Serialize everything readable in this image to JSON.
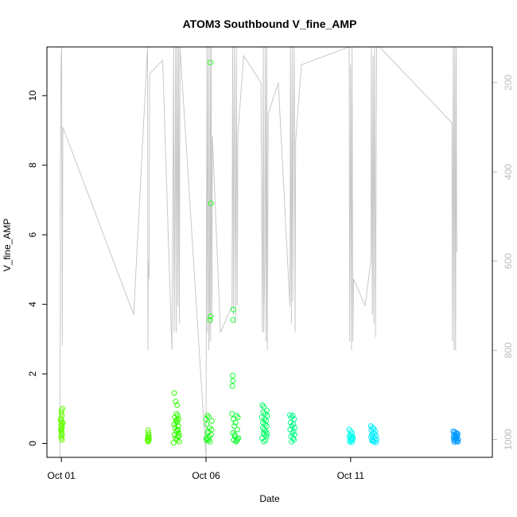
{
  "chart_data": {
    "type": "scatter",
    "title": "ATOM3 Southbound V_fine_AMP",
    "xlabel": "Date",
    "ylabel": "V_fine_AMP",
    "x_ticks": [
      {
        "label": "Oct 01",
        "day": 1
      },
      {
        "label": "Oct 06",
        "day": 6
      },
      {
        "label": "Oct 11",
        "day": 11
      }
    ],
    "xlim_days": [
      0.5,
      15.9
    ],
    "ylim": [
      -0.4,
      11.4
    ],
    "y_ticks": [
      0,
      2,
      4,
      6,
      8,
      10
    ],
    "secondary_axis": {
      "reversed": true,
      "lim": [
        1040,
        120
      ],
      "ticks": [
        200,
        400,
        600,
        800,
        1000
      ],
      "color": "#bbbbbb"
    },
    "grid": false,
    "legend": "none",
    "series": [
      {
        "color": "#66ff00",
        "points": [
          [
            1.0,
            0.95
          ],
          [
            1.0,
            0.88
          ],
          [
            1.02,
            0.8
          ],
          [
            0.98,
            0.72
          ],
          [
            1.01,
            0.65
          ],
          [
            1.03,
            0.6
          ],
          [
            0.99,
            0.55
          ],
          [
            1.0,
            0.5
          ],
          [
            1.02,
            0.45
          ],
          [
            0.98,
            0.4
          ],
          [
            1.01,
            0.35
          ],
          [
            1.0,
            0.3
          ],
          [
            1.03,
            0.25
          ],
          [
            0.99,
            0.2
          ],
          [
            1.0,
            0.15
          ],
          [
            1.02,
            0.1
          ],
          [
            1.04,
            1.0
          ],
          [
            0.97,
            0.68
          ],
          [
            1.05,
            0.58
          ],
          [
            1.0,
            0.42
          ]
        ]
      },
      {
        "color": "#55ff00",
        "points": [
          [
            4.0,
            0.38
          ],
          [
            4.01,
            0.3
          ],
          [
            4.02,
            0.25
          ],
          [
            3.99,
            0.2
          ],
          [
            4.0,
            0.15
          ],
          [
            4.03,
            0.12
          ],
          [
            4.01,
            0.08
          ],
          [
            3.98,
            0.1
          ],
          [
            4.02,
            0.18
          ],
          [
            4.0,
            0.05
          ]
        ]
      },
      {
        "color": "#33ff00",
        "points": [
          [
            4.9,
            1.45
          ],
          [
            4.95,
            1.2
          ],
          [
            5.0,
            1.1
          ],
          [
            4.98,
            0.85
          ],
          [
            5.02,
            0.8
          ],
          [
            4.92,
            0.75
          ],
          [
            5.05,
            0.7
          ],
          [
            4.96,
            0.65
          ],
          [
            5.0,
            0.6
          ],
          [
            4.9,
            0.55
          ],
          [
            5.04,
            0.5
          ],
          [
            4.93,
            0.45
          ],
          [
            5.01,
            0.4
          ],
          [
            4.97,
            0.35
          ],
          [
            5.06,
            0.3
          ],
          [
            4.91,
            0.25
          ],
          [
            5.02,
            0.2
          ],
          [
            4.95,
            0.15
          ],
          [
            5.0,
            0.1
          ],
          [
            5.08,
            0.05
          ],
          [
            4.88,
            0.02
          ],
          [
            5.03,
            0.38
          ],
          [
            4.99,
            0.68
          ],
          [
            5.07,
            0.22
          ]
        ]
      },
      {
        "color": "#22ff22",
        "points": [
          [
            6.15,
            10.95
          ],
          [
            6.17,
            6.9
          ],
          [
            6.16,
            3.65
          ],
          [
            6.14,
            3.55
          ],
          [
            6.05,
            0.8
          ],
          [
            6.1,
            0.75
          ],
          [
            6.0,
            0.7
          ],
          [
            6.2,
            0.65
          ],
          [
            6.03,
            0.55
          ],
          [
            6.12,
            0.45
          ],
          [
            6.07,
            0.35
          ],
          [
            6.18,
            0.25
          ],
          [
            6.01,
            0.15
          ],
          [
            6.09,
            0.1
          ],
          [
            6.14,
            0.05
          ],
          [
            6.04,
            0.08
          ],
          [
            6.11,
            0.2
          ],
          [
            6.06,
            0.3
          ],
          [
            6.19,
            0.4
          ],
          [
            6.02,
            0.12
          ]
        ]
      },
      {
        "color": "#11ff33",
        "points": [
          [
            6.95,
            3.85
          ],
          [
            6.93,
            3.55
          ],
          [
            6.92,
            1.95
          ],
          [
            6.93,
            1.8
          ],
          [
            6.91,
            1.65
          ],
          [
            6.9,
            0.85
          ],
          [
            7.05,
            0.8
          ],
          [
            7.1,
            0.75
          ],
          [
            6.95,
            0.7
          ],
          [
            7.02,
            0.6
          ],
          [
            6.98,
            0.5
          ],
          [
            7.08,
            0.4
          ],
          [
            6.93,
            0.3
          ],
          [
            7.0,
            0.2
          ],
          [
            7.12,
            0.15
          ],
          [
            6.96,
            0.1
          ],
          [
            7.04,
            0.05
          ],
          [
            7.09,
            0.12
          ],
          [
            6.99,
            0.25
          ],
          [
            7.06,
            0.08
          ]
        ]
      },
      {
        "color": "#00ff66",
        "points": [
          [
            7.95,
            1.1
          ],
          [
            8.0,
            1.05
          ],
          [
            8.1,
            0.95
          ],
          [
            7.98,
            0.9
          ],
          [
            8.05,
            0.85
          ],
          [
            8.12,
            0.8
          ],
          [
            7.93,
            0.75
          ],
          [
            8.02,
            0.7
          ],
          [
            8.08,
            0.65
          ],
          [
            7.97,
            0.6
          ],
          [
            8.04,
            0.55
          ],
          [
            8.1,
            0.5
          ],
          [
            7.96,
            0.45
          ],
          [
            8.01,
            0.4
          ],
          [
            8.07,
            0.35
          ],
          [
            7.99,
            0.3
          ],
          [
            8.03,
            0.25
          ],
          [
            8.09,
            0.2
          ],
          [
            7.94,
            0.15
          ],
          [
            8.06,
            0.1
          ],
          [
            8.0,
            0.05
          ],
          [
            8.11,
            0.28
          ]
        ]
      },
      {
        "color": "#00ff88",
        "points": [
          [
            8.9,
            0.82
          ],
          [
            9.0,
            0.8
          ],
          [
            8.95,
            0.75
          ],
          [
            9.05,
            0.7
          ],
          [
            8.92,
            0.6
          ],
          [
            9.02,
            0.55
          ],
          [
            8.97,
            0.5
          ],
          [
            9.07,
            0.45
          ],
          [
            8.91,
            0.4
          ],
          [
            9.03,
            0.35
          ],
          [
            8.99,
            0.3
          ],
          [
            9.06,
            0.25
          ],
          [
            8.94,
            0.2
          ],
          [
            9.01,
            0.15
          ],
          [
            9.04,
            0.1
          ],
          [
            8.96,
            0.05
          ]
        ]
      },
      {
        "color": "#00ffee",
        "points": [
          [
            10.95,
            0.4
          ],
          [
            11.0,
            0.35
          ],
          [
            11.05,
            0.3
          ],
          [
            10.98,
            0.25
          ],
          [
            11.02,
            0.22
          ],
          [
            11.07,
            0.2
          ],
          [
            10.96,
            0.18
          ],
          [
            11.03,
            0.15
          ],
          [
            10.99,
            0.12
          ],
          [
            11.06,
            0.1
          ],
          [
            11.01,
            0.08
          ],
          [
            10.97,
            0.05
          ],
          [
            11.04,
            0.03
          ],
          [
            11.08,
            0.14
          ]
        ]
      },
      {
        "color": "#00eeff",
        "points": [
          [
            11.7,
            0.5
          ],
          [
            11.75,
            0.45
          ],
          [
            11.8,
            0.42
          ],
          [
            11.72,
            0.38
          ],
          [
            11.85,
            0.35
          ],
          [
            11.77,
            0.3
          ],
          [
            11.82,
            0.28
          ],
          [
            11.73,
            0.25
          ],
          [
            11.88,
            0.22
          ],
          [
            11.79,
            0.2
          ],
          [
            11.71,
            0.18
          ],
          [
            11.84,
            0.15
          ],
          [
            11.76,
            0.12
          ],
          [
            11.9,
            0.1
          ],
          [
            11.74,
            0.08
          ],
          [
            11.81,
            0.05
          ],
          [
            11.87,
            0.03
          ],
          [
            11.78,
            0.06
          ]
        ]
      },
      {
        "color": "#0099ff",
        "points": [
          [
            14.55,
            0.35
          ],
          [
            14.6,
            0.33
          ],
          [
            14.65,
            0.3
          ],
          [
            14.7,
            0.28
          ],
          [
            14.58,
            0.25
          ],
          [
            14.63,
            0.22
          ],
          [
            14.68,
            0.2
          ],
          [
            14.56,
            0.18
          ],
          [
            14.61,
            0.15
          ],
          [
            14.66,
            0.13
          ],
          [
            14.72,
            0.12
          ],
          [
            14.57,
            0.1
          ],
          [
            14.62,
            0.08
          ],
          [
            14.67,
            0.06
          ],
          [
            14.71,
            0.05
          ],
          [
            14.59,
            0.04
          ],
          [
            14.64,
            0.16
          ],
          [
            14.69,
            0.24
          ]
        ]
      }
    ],
    "secondary_line": {
      "color": "#c8c8c8",
      "points": [
        [
          0.95,
          1040
        ],
        [
          0.97,
          350
        ],
        [
          0.99,
          150
        ],
        [
          1.01,
          120
        ],
        [
          1.03,
          790
        ],
        [
          1.05,
          300
        ],
        [
          3.5,
          720
        ],
        [
          3.98,
          120
        ],
        [
          3.99,
          800
        ],
        [
          4.0,
          630
        ],
        [
          4.02,
          600
        ],
        [
          4.03,
          640
        ],
        [
          4.05,
          180
        ],
        [
          4.5,
          150
        ],
        [
          4.8,
          760
        ],
        [
          4.82,
          800
        ],
        [
          4.85,
          500
        ],
        [
          4.88,
          120
        ],
        [
          4.9,
          760
        ],
        [
          4.93,
          410
        ],
        [
          4.95,
          120
        ],
        [
          4.97,
          760
        ],
        [
          5.0,
          120
        ],
        [
          5.03,
          700
        ],
        [
          5.05,
          120
        ],
        [
          5.08,
          740
        ],
        [
          5.1,
          120
        ],
        [
          6.0,
          1040
        ],
        [
          6.03,
          120
        ],
        [
          6.05,
          760
        ],
        [
          6.08,
          120
        ],
        [
          6.1,
          800
        ],
        [
          6.12,
          700
        ],
        [
          6.14,
          120
        ],
        [
          6.16,
          780
        ],
        [
          6.18,
          120
        ],
        [
          6.2,
          740
        ],
        [
          6.22,
          320
        ],
        [
          6.5,
          760
        ],
        [
          6.9,
          700
        ],
        [
          6.92,
          120
        ],
        [
          6.95,
          720
        ],
        [
          6.98,
          120
        ],
        [
          7.02,
          740
        ],
        [
          7.05,
          120
        ],
        [
          7.08,
          700
        ],
        [
          7.1,
          320
        ],
        [
          7.3,
          140
        ],
        [
          7.9,
          200
        ],
        [
          7.95,
          760
        ],
        [
          7.98,
          120
        ],
        [
          8.0,
          760
        ],
        [
          8.03,
          600
        ],
        [
          8.05,
          120
        ],
        [
          8.08,
          780
        ],
        [
          8.1,
          120
        ],
        [
          8.12,
          800
        ],
        [
          8.15,
          270
        ],
        [
          8.5,
          200
        ],
        [
          8.9,
          700
        ],
        [
          8.92,
          120
        ],
        [
          8.95,
          740
        ],
        [
          8.98,
          120
        ],
        [
          9.0,
          690
        ],
        [
          9.02,
          330
        ],
        [
          9.05,
          120
        ],
        [
          9.08,
          760
        ],
        [
          9.1,
          330
        ],
        [
          9.3,
          160
        ],
        [
          10.95,
          120
        ],
        [
          10.97,
          780
        ],
        [
          11.0,
          160
        ],
        [
          11.03,
          800
        ],
        [
          11.05,
          120
        ],
        [
          11.08,
          780
        ],
        [
          11.1,
          640
        ],
        [
          11.5,
          700
        ],
        [
          11.7,
          600
        ],
        [
          11.72,
          120
        ],
        [
          11.75,
          720
        ],
        [
          11.78,
          140
        ],
        [
          11.8,
          740
        ],
        [
          11.83,
          120
        ],
        [
          11.86,
          770
        ],
        [
          11.9,
          120
        ],
        [
          12.0,
          120
        ],
        [
          14.5,
          290
        ],
        [
          14.52,
          780
        ],
        [
          14.55,
          120
        ],
        [
          14.58,
          800
        ],
        [
          14.6,
          120
        ],
        [
          14.63,
          800
        ],
        [
          14.65,
          120
        ],
        [
          14.67,
          580
        ]
      ]
    }
  }
}
